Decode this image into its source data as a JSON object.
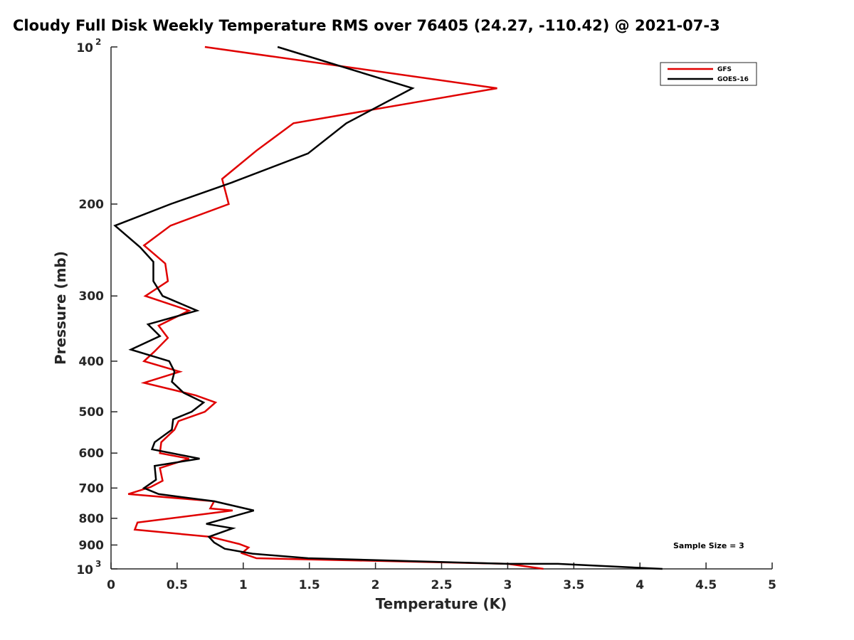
{
  "chart_data": {
    "type": "line",
    "title": "Cloudy Full Disk Weekly Temperature RMS over 76405 (24.27, -110.42) @ 2021-07-3",
    "xlabel": "Temperature (K)",
    "ylabel": "Pressure (mb)",
    "xlim": [
      0,
      5
    ],
    "ylim": [
      100,
      1000
    ],
    "yscale": "log",
    "yreverse": true,
    "grid": false,
    "legend_position": "top-right",
    "xticks": [
      "0",
      "0.5",
      "1",
      "1.5",
      "2",
      "2.5",
      "3",
      "3.5",
      "4",
      "4.5",
      "5"
    ],
    "xtick_values": [
      0,
      0.5,
      1,
      1.5,
      2,
      2.5,
      3,
      3.5,
      4,
      4.5,
      5
    ],
    "yticks": [
      {
        "value": 100,
        "base": "10",
        "exp": "2"
      },
      {
        "value": 200,
        "label": "200"
      },
      {
        "value": 300,
        "label": "300"
      },
      {
        "value": 400,
        "label": "400"
      },
      {
        "value": 500,
        "label": "500"
      },
      {
        "value": 600,
        "label": "600"
      },
      {
        "value": 700,
        "label": "700"
      },
      {
        "value": 800,
        "label": "800"
      },
      {
        "value": 900,
        "label": "900"
      },
      {
        "value": 1000,
        "base": "10",
        "exp": "3"
      }
    ],
    "annotation": "Sample Size = 3",
    "series": [
      {
        "name": "GFS",
        "color": "#e00000",
        "points": [
          [
            0.71,
            100
          ],
          [
            2.92,
            120
          ],
          [
            1.38,
            140
          ],
          [
            1.1,
            158
          ],
          [
            0.84,
            179
          ],
          [
            0.89,
            200
          ],
          [
            0.45,
            220
          ],
          [
            0.25,
            240
          ],
          [
            0.41,
            260
          ],
          [
            0.43,
            281
          ],
          [
            0.26,
            300
          ],
          [
            0.59,
            320
          ],
          [
            0.36,
            342
          ],
          [
            0.43,
            361
          ],
          [
            0.33,
            383
          ],
          [
            0.25,
            400
          ],
          [
            0.52,
            419
          ],
          [
            0.25,
            440
          ],
          [
            0.64,
            465
          ],
          [
            0.79,
            480
          ],
          [
            0.71,
            500
          ],
          [
            0.51,
            521
          ],
          [
            0.48,
            541
          ],
          [
            0.38,
            572
          ],
          [
            0.37,
            600
          ],
          [
            0.59,
            615
          ],
          [
            0.37,
            641
          ],
          [
            0.39,
            678
          ],
          [
            0.3,
            697
          ],
          [
            0.13,
            719
          ],
          [
            0.78,
            742
          ],
          [
            0.75,
            766
          ],
          [
            0.92,
            773
          ],
          [
            0.2,
            815
          ],
          [
            0.18,
            841
          ],
          [
            0.75,
            868
          ],
          [
            0.97,
            896
          ],
          [
            1.04,
            910
          ],
          [
            0.99,
            933
          ],
          [
            1.1,
            954
          ],
          [
            3.0,
            978
          ],
          [
            3.27,
            1000
          ]
        ]
      },
      {
        "name": "GOES-16",
        "color": "#000000",
        "points": [
          [
            1.26,
            100
          ],
          [
            2.28,
            120
          ],
          [
            1.78,
            140
          ],
          [
            1.49,
            160
          ],
          [
            0.91,
            182
          ],
          [
            0.45,
            200
          ],
          [
            0.03,
            220
          ],
          [
            0.22,
            242
          ],
          [
            0.32,
            258
          ],
          [
            0.32,
            281
          ],
          [
            0.39,
            300
          ],
          [
            0.65,
            320
          ],
          [
            0.28,
            340
          ],
          [
            0.37,
            358
          ],
          [
            0.15,
            380
          ],
          [
            0.44,
            400
          ],
          [
            0.48,
            419
          ],
          [
            0.46,
            438
          ],
          [
            0.55,
            460
          ],
          [
            0.7,
            480
          ],
          [
            0.61,
            500
          ],
          [
            0.47,
            517
          ],
          [
            0.46,
            541
          ],
          [
            0.33,
            572
          ],
          [
            0.31,
            590
          ],
          [
            0.67,
            615
          ],
          [
            0.33,
            635
          ],
          [
            0.34,
            675
          ],
          [
            0.25,
            700
          ],
          [
            0.36,
            719
          ],
          [
            0.78,
            742
          ],
          [
            1.08,
            773
          ],
          [
            0.72,
            820
          ],
          [
            0.92,
            836
          ],
          [
            0.74,
            868
          ],
          [
            0.78,
            890
          ],
          [
            0.86,
            915
          ],
          [
            1.07,
            935
          ],
          [
            1.49,
            954
          ],
          [
            3.0,
            978
          ],
          [
            3.38,
            978
          ],
          [
            4.17,
            1000
          ]
        ]
      }
    ]
  }
}
